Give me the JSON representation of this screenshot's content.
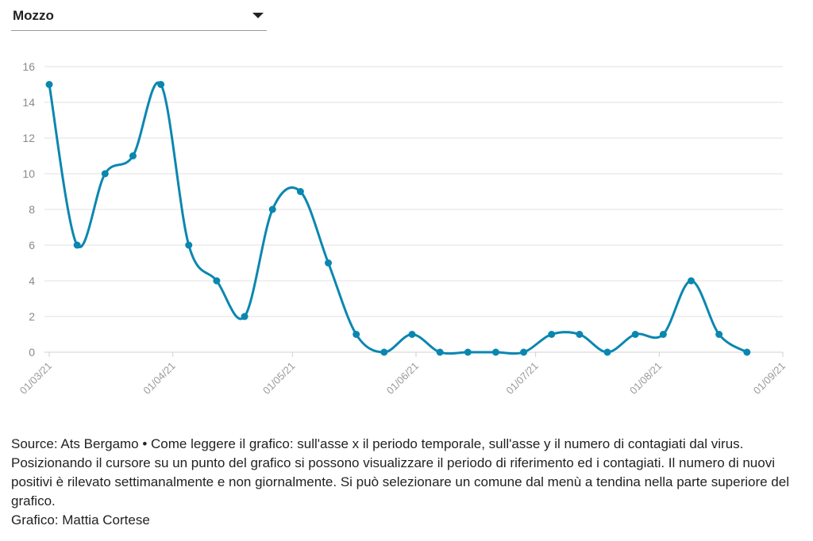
{
  "dropdown": {
    "selected": "Mozzo"
  },
  "colors": {
    "line": "#0a87b0",
    "grid": "#e2e2e2",
    "axis": "#d0d0d0"
  },
  "chart_data": {
    "type": "line",
    "xlabel": "",
    "ylabel": "",
    "ylim": [
      0,
      16
    ],
    "yticks": [
      0,
      2,
      4,
      6,
      8,
      10,
      12,
      14,
      16
    ],
    "grid": true,
    "xticks": [
      "01/03/21",
      "01/04/21",
      "01/05/21",
      "01/06/21",
      "01/07/21",
      "01/08/21",
      "01/09/21"
    ],
    "xlim": [
      "2021-03-01",
      "2021-09-01"
    ],
    "series": [
      {
        "points": [
          {
            "x": "2021-03-01",
            "y": 15
          },
          {
            "x": "2021-03-08",
            "y": 6
          },
          {
            "x": "2021-03-15",
            "y": 10
          },
          {
            "x": "2021-03-22",
            "y": 11
          },
          {
            "x": "2021-03-29",
            "y": 15
          },
          {
            "x": "2021-04-05",
            "y": 6
          },
          {
            "x": "2021-04-12",
            "y": 4
          },
          {
            "x": "2021-04-19",
            "y": 2
          },
          {
            "x": "2021-04-26",
            "y": 8
          },
          {
            "x": "2021-05-03",
            "y": 9
          },
          {
            "x": "2021-05-10",
            "y": 5
          },
          {
            "x": "2021-05-17",
            "y": 1
          },
          {
            "x": "2021-05-24",
            "y": 0
          },
          {
            "x": "2021-05-31",
            "y": 1
          },
          {
            "x": "2021-06-07",
            "y": 0
          },
          {
            "x": "2021-06-14",
            "y": 0
          },
          {
            "x": "2021-06-21",
            "y": 0
          },
          {
            "x": "2021-06-28",
            "y": 0
          },
          {
            "x": "2021-07-05",
            "y": 1
          },
          {
            "x": "2021-07-12",
            "y": 1
          },
          {
            "x": "2021-07-19",
            "y": 0
          },
          {
            "x": "2021-07-26",
            "y": 1
          },
          {
            "x": "2021-08-02",
            "y": 1
          },
          {
            "x": "2021-08-09",
            "y": 4
          },
          {
            "x": "2021-08-16",
            "y": 1
          },
          {
            "x": "2021-08-23",
            "y": 0
          }
        ]
      }
    ]
  },
  "notes": {
    "description": "Source: Ats Bergamo • Come leggere il grafico: sull'asse x il periodo temporale, sull'asse y il numero di contagiati dal virus. Posizionando il cursore su un punto del grafico si possono visualizzare il periodo di riferimento ed i contagiati. Il numero di nuovi positivi è rilevato settimanalmente e non giornalmente. Si può selezionare un comune dal menù a tendina nella parte superiore del grafico.",
    "credit": "Grafico: Mattia Cortese"
  }
}
